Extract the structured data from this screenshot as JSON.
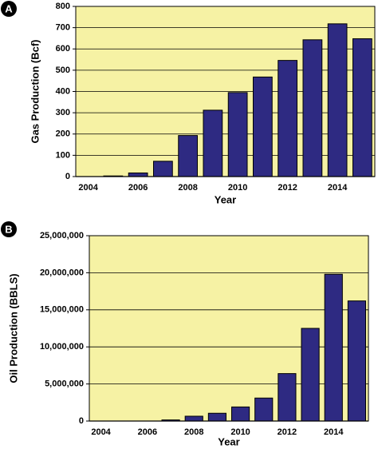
{
  "chart_data": [
    {
      "type": "bar",
      "panel": "A",
      "x_label": "Year",
      "y_label": "Gas Production (Bcf)",
      "categories": [
        "2004",
        null,
        "2006",
        null,
        "2008",
        null,
        "2010",
        null,
        "2012",
        null,
        "2014",
        null
      ],
      "values": [
        0,
        3,
        17,
        72,
        193,
        312,
        395,
        468,
        546,
        643,
        718,
        648
      ],
      "color": "#2e2a82",
      "background": "#f6f2a4",
      "ylim": [
        0,
        800
      ],
      "yticks": [
        0,
        100,
        200,
        300,
        400,
        500,
        600,
        700,
        800
      ],
      "grid": true
    },
    {
      "type": "bar",
      "panel": "B",
      "x_label": "Year",
      "y_label": "Oil Production (BBLS)",
      "categories": [
        "2004",
        null,
        "2006",
        null,
        "2008",
        null,
        "2010",
        null,
        "2012",
        null,
        "2014",
        null
      ],
      "values": [
        0,
        0,
        0,
        150000,
        650000,
        1050000,
        1900000,
        3100000,
        6400000,
        12500000,
        19800000,
        16200000
      ],
      "color": "#2e2a82",
      "background": "#f6f2a4",
      "ylim": [
        0,
        25000000
      ],
      "yticks": [
        0,
        {
          "value": 5000000,
          "label": "5,000,000"
        },
        {
          "value": 10000000,
          "label": "10,000,000"
        },
        {
          "value": 15000000,
          "label": "15,000,000"
        },
        {
          "value": 20000000,
          "label": "20,000,000"
        },
        {
          "value": 25000000,
          "label": "25,000,000"
        }
      ],
      "grid": true
    }
  ]
}
